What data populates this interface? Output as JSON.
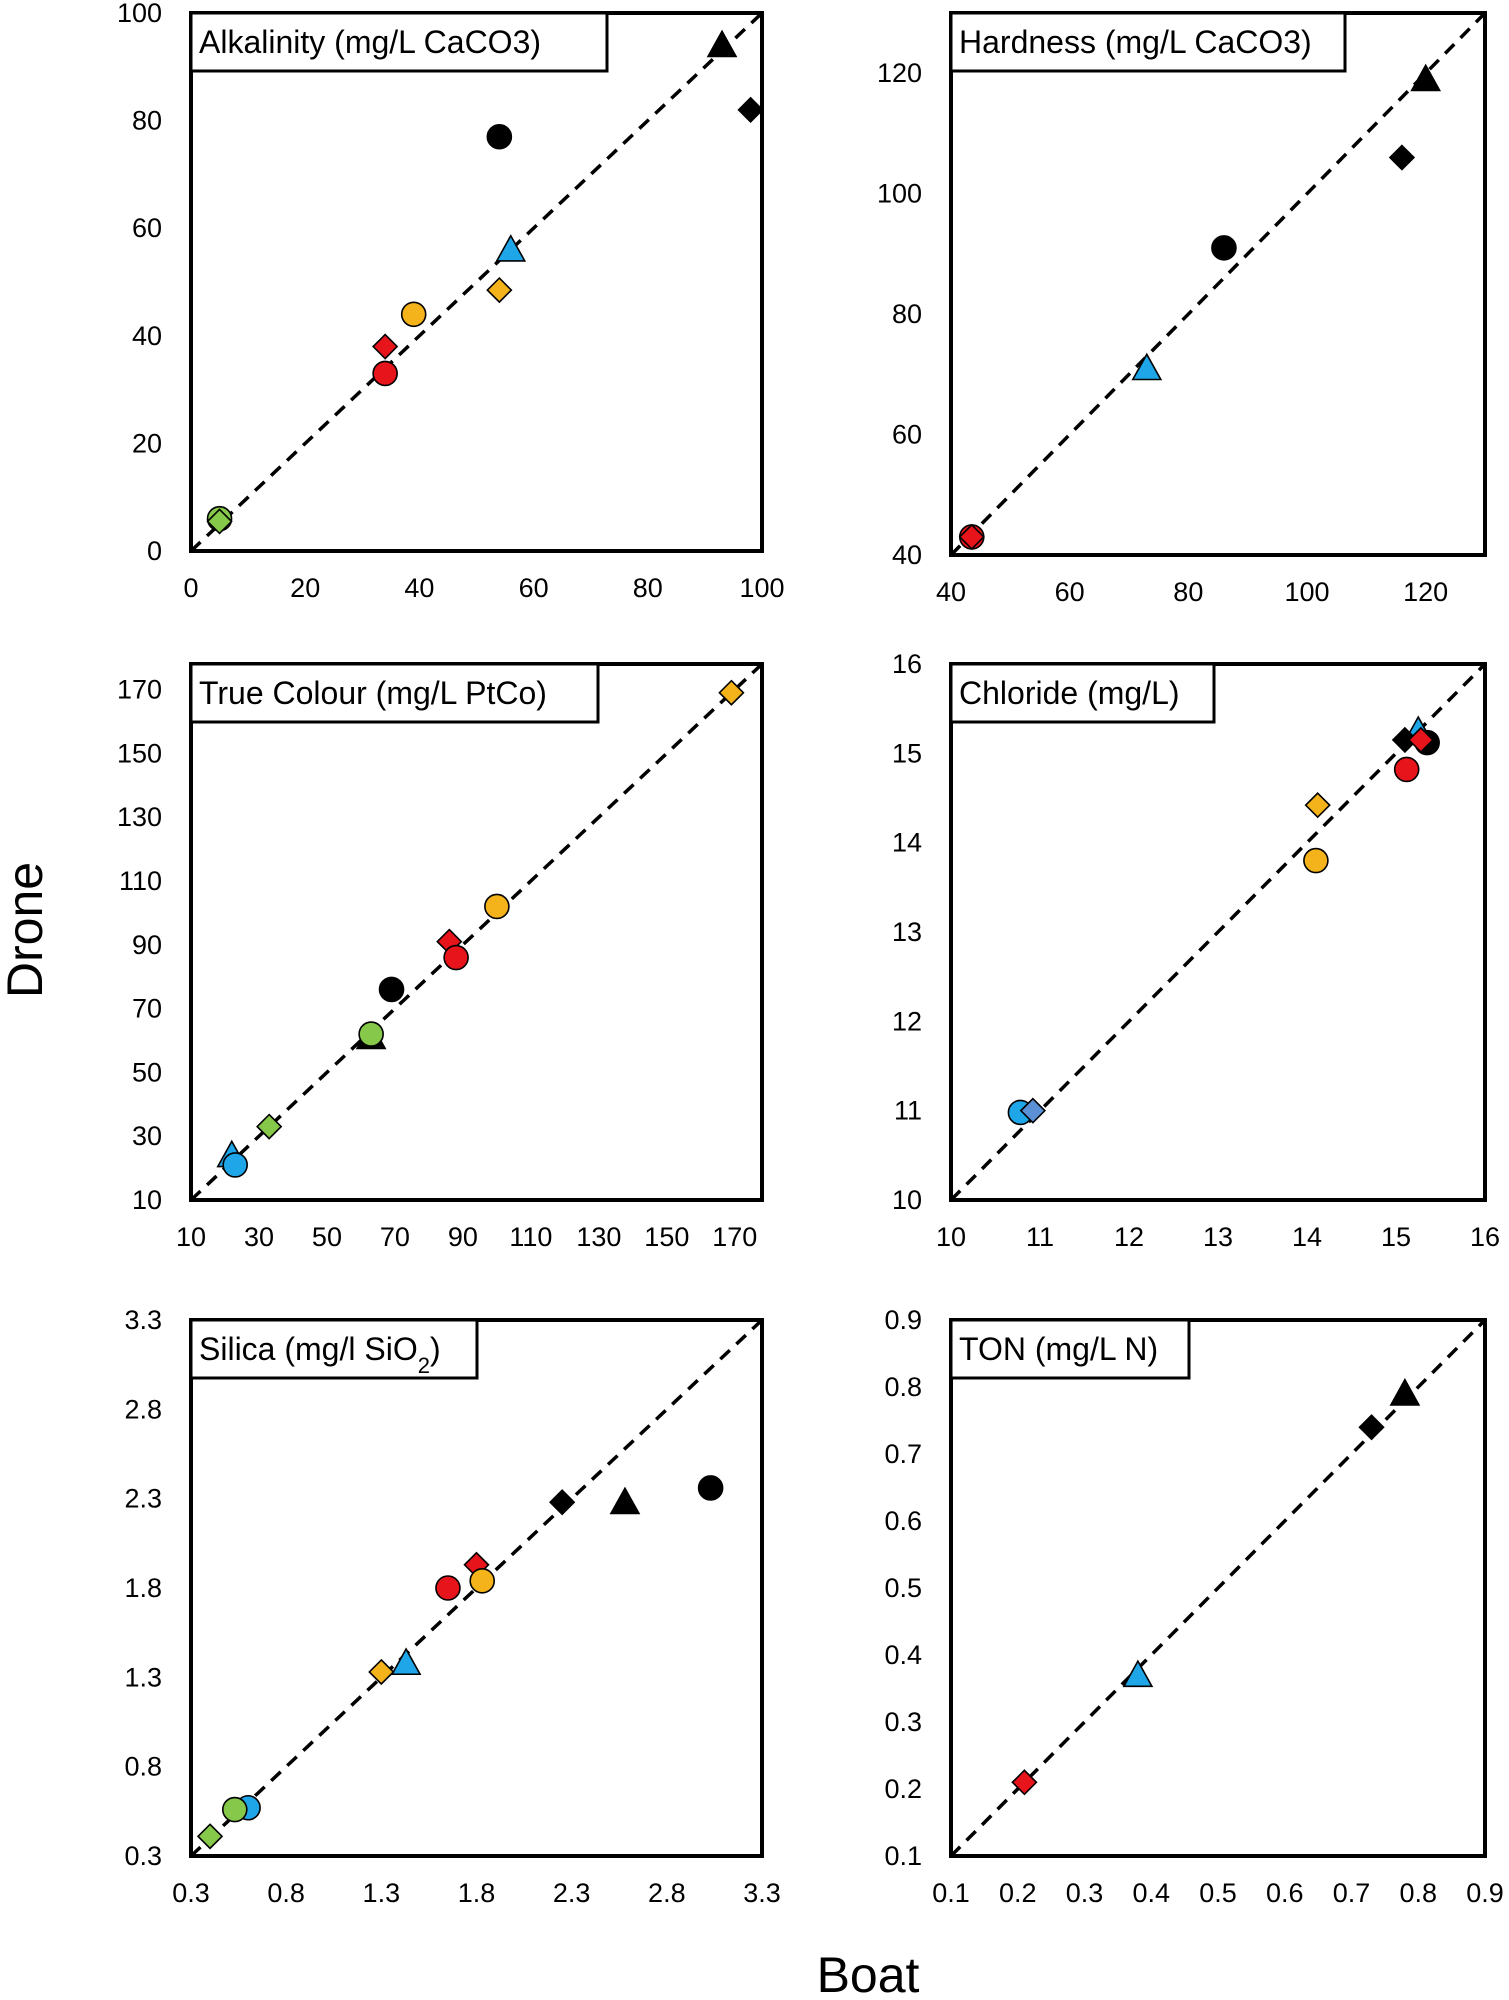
{
  "figure": {
    "xlabel": "Boat",
    "ylabel": "Drone"
  },
  "chart_data": [
    {
      "type": "scatter",
      "title": "Alkalinity (mg/L CaCO3)",
      "xlim": [
        0,
        100
      ],
      "ylim": [
        0,
        100
      ],
      "xticks": [
        0,
        20,
        40,
        60,
        80,
        100
      ],
      "yticks": [
        0,
        20,
        40,
        60,
        80,
        100
      ],
      "identity_line": true,
      "points": [
        {
          "x": 93,
          "y": 94,
          "shape": "triangle",
          "color": "#000000"
        },
        {
          "x": 98,
          "y": 82,
          "shape": "diamond",
          "color": "#000000"
        },
        {
          "x": 54,
          "y": 77,
          "shape": "circle",
          "color": "#000000"
        },
        {
          "x": 56,
          "y": 56,
          "shape": "triangle",
          "color": "#1fa6e8"
        },
        {
          "x": 54,
          "y": 48.5,
          "shape": "diamond",
          "color": "#f5b31b"
        },
        {
          "x": 39,
          "y": 44,
          "shape": "circle",
          "color": "#f5b31b"
        },
        {
          "x": 34,
          "y": 38,
          "shape": "diamond",
          "color": "#e8141b"
        },
        {
          "x": 34,
          "y": 33,
          "shape": "circle",
          "color": "#e8141b"
        },
        {
          "x": 5,
          "y": 6,
          "shape": "circle",
          "color": "#86c94a"
        },
        {
          "x": 5,
          "y": 5.5,
          "shape": "diamond",
          "color": "#86c94a"
        }
      ]
    },
    {
      "type": "scatter",
      "title": "Hardness (mg/L CaCO3)",
      "xlim": [
        40,
        130
      ],
      "ylim": [
        40,
        130
      ],
      "xticks": [
        40,
        60,
        80,
        100,
        120
      ],
      "yticks": [
        40,
        60,
        80,
        100,
        120
      ],
      "identity_line": true,
      "points": [
        {
          "x": 120,
          "y": 119,
          "shape": "triangle",
          "color": "#000000"
        },
        {
          "x": 116,
          "y": 106,
          "shape": "diamond",
          "color": "#000000"
        },
        {
          "x": 86,
          "y": 91,
          "shape": "circle",
          "color": "#000000"
        },
        {
          "x": 73,
          "y": 71,
          "shape": "triangle",
          "color": "#1fa6e8"
        },
        {
          "x": 43.5,
          "y": 43,
          "shape": "circle",
          "color": "#e8141b"
        },
        {
          "x": 43.5,
          "y": 43,
          "shape": "diamond",
          "color": "#e8141b"
        }
      ]
    },
    {
      "type": "scatter",
      "title": "True Colour (mg/L PtCo)",
      "xlim": [
        10,
        178
      ],
      "ylim": [
        10,
        178
      ],
      "xticks": [
        10,
        30,
        50,
        70,
        90,
        110,
        130,
        150,
        170
      ],
      "yticks": [
        10,
        30,
        50,
        70,
        90,
        110,
        130,
        150,
        170
      ],
      "identity_line": true,
      "points": [
        {
          "x": 169,
          "y": 169,
          "shape": "diamond",
          "color": "#f5b31b"
        },
        {
          "x": 100,
          "y": 102,
          "shape": "circle",
          "color": "#f5b31b"
        },
        {
          "x": 86,
          "y": 91,
          "shape": "diamond",
          "color": "#e8141b"
        },
        {
          "x": 88,
          "y": 86,
          "shape": "circle",
          "color": "#e8141b"
        },
        {
          "x": 69,
          "y": 76,
          "shape": "circle",
          "color": "#000000"
        },
        {
          "x": 63,
          "y": 61,
          "shape": "triangle",
          "color": "#000000"
        },
        {
          "x": 63,
          "y": 62,
          "shape": "circle",
          "color": "#86c94a"
        },
        {
          "x": 33,
          "y": 33,
          "shape": "diamond",
          "color": "#86c94a"
        },
        {
          "x": 22,
          "y": 24,
          "shape": "triangle",
          "color": "#1fa6e8"
        },
        {
          "x": 23,
          "y": 21,
          "shape": "circle",
          "color": "#1fa6e8"
        }
      ]
    },
    {
      "type": "scatter",
      "title": "Chloride (mg/L)",
      "xlim": [
        10,
        16
      ],
      "ylim": [
        10,
        16
      ],
      "xticks": [
        10,
        11,
        12,
        13,
        14,
        15,
        16
      ],
      "yticks": [
        10,
        11,
        12,
        13,
        14,
        15,
        16
      ],
      "identity_line": true,
      "points": [
        {
          "x": 15.25,
          "y": 15.25,
          "shape": "triangle",
          "color": "#1fa6e8"
        },
        {
          "x": 15.1,
          "y": 15.15,
          "shape": "diamond",
          "color": "#000000"
        },
        {
          "x": 15.35,
          "y": 15.12,
          "shape": "circle",
          "color": "#000000"
        },
        {
          "x": 15.28,
          "y": 15.15,
          "shape": "diamond",
          "color": "#e8141b"
        },
        {
          "x": 15.12,
          "y": 14.82,
          "shape": "circle",
          "color": "#e8141b"
        },
        {
          "x": 14.12,
          "y": 14.42,
          "shape": "diamond",
          "color": "#f5b31b"
        },
        {
          "x": 14.1,
          "y": 13.8,
          "shape": "circle",
          "color": "#f5b31b"
        },
        {
          "x": 10.78,
          "y": 10.98,
          "shape": "circle",
          "color": "#1fa6e8"
        },
        {
          "x": 10.92,
          "y": 11.0,
          "shape": "diamond",
          "color": "#5b8fd6"
        }
      ]
    },
    {
      "type": "scatter",
      "title": "Silica (mg/l SiO",
      "title_subscript": "2",
      "title_suffix": ")",
      "xlim": [
        0.3,
        3.3
      ],
      "ylim": [
        0.3,
        3.3
      ],
      "xticks": [
        "0.3",
        "0.8",
        "1.3",
        "1.8",
        "2.3",
        "2.8",
        "3.3"
      ],
      "yticks": [
        "0.3",
        "0.8",
        "1.3",
        "1.8",
        "2.3",
        "2.8",
        "3.3"
      ],
      "identity_line": true,
      "points": [
        {
          "x": 3.03,
          "y": 2.36,
          "shape": "circle",
          "color": "#000000"
        },
        {
          "x": 2.58,
          "y": 2.28,
          "shape": "triangle",
          "color": "#000000"
        },
        {
          "x": 2.25,
          "y": 2.28,
          "shape": "diamond",
          "color": "#000000"
        },
        {
          "x": 1.8,
          "y": 1.93,
          "shape": "diamond",
          "color": "#e8141b"
        },
        {
          "x": 1.65,
          "y": 1.8,
          "shape": "circle",
          "color": "#e8141b"
        },
        {
          "x": 1.83,
          "y": 1.84,
          "shape": "circle",
          "color": "#f5b31b"
        },
        {
          "x": 1.43,
          "y": 1.38,
          "shape": "triangle",
          "color": "#1fa6e8"
        },
        {
          "x": 1.3,
          "y": 1.33,
          "shape": "diamond",
          "color": "#f5b31b"
        },
        {
          "x": 0.6,
          "y": 0.57,
          "shape": "circle",
          "color": "#1fa6e8"
        },
        {
          "x": 0.53,
          "y": 0.56,
          "shape": "circle",
          "color": "#86c94a"
        },
        {
          "x": 0.4,
          "y": 0.41,
          "shape": "diamond",
          "color": "#86c94a"
        }
      ]
    },
    {
      "type": "scatter",
      "title": "TON (mg/L N)",
      "xlim": [
        0.1,
        0.9
      ],
      "ylim": [
        0.1,
        0.9
      ],
      "xticks": [
        "0.1",
        "0.2",
        "0.3",
        "0.4",
        "0.5",
        "0.6",
        "0.7",
        "0.8",
        "0.9"
      ],
      "yticks": [
        "0.1",
        "0.2",
        "0.3",
        "0.4",
        "0.5",
        "0.6",
        "0.7",
        "0.8",
        "0.9"
      ],
      "identity_line": true,
      "points": [
        {
          "x": 0.78,
          "y": 0.79,
          "shape": "triangle",
          "color": "#000000"
        },
        {
          "x": 0.73,
          "y": 0.74,
          "shape": "diamond",
          "color": "#000000"
        },
        {
          "x": 0.38,
          "y": 0.37,
          "shape": "triangle",
          "color": "#1fa6e8"
        },
        {
          "x": 0.21,
          "y": 0.21,
          "shape": "diamond",
          "color": "#e8141b"
        }
      ]
    }
  ]
}
